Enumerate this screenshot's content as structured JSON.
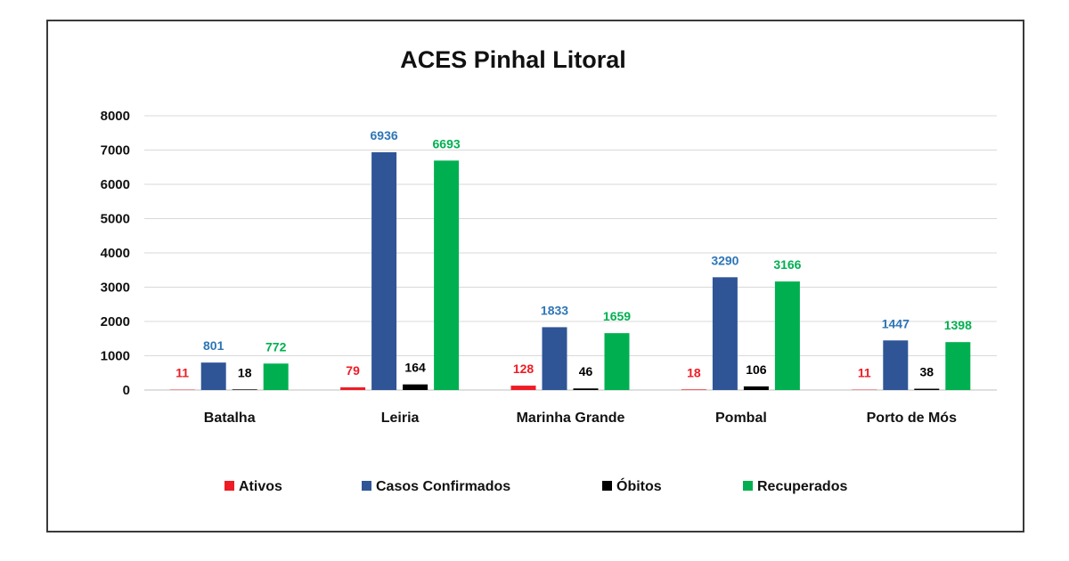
{
  "chart_data": {
    "type": "bar",
    "title": "ACES Pinhal Litoral",
    "categories": [
      "Batalha",
      "Leiria",
      "Marinha Grande",
      "Pombal",
      "Porto de Mós"
    ],
    "series": [
      {
        "name": "Ativos",
        "color": "#ee1c25",
        "values": [
          11,
          79,
          128,
          18,
          11
        ]
      },
      {
        "name": "Casos Confirmados",
        "color": "#2f5597",
        "label_color": "#2e75b6",
        "values": [
          801,
          6936,
          1833,
          3290,
          1447
        ]
      },
      {
        "name": "Óbitos",
        "color": "#000000",
        "label_color": "#000000",
        "values": [
          18,
          164,
          46,
          106,
          38
        ]
      },
      {
        "name": "Recuperados",
        "color": "#00b050",
        "label_color": "#00b050",
        "values": [
          772,
          6693,
          1659,
          3166,
          1398
        ]
      }
    ],
    "ylim": [
      0,
      8000
    ],
    "yticks": [
      0,
      1000,
      2000,
      3000,
      4000,
      5000,
      6000,
      7000,
      8000
    ],
    "grid": true,
    "legend_position": "bottom"
  }
}
